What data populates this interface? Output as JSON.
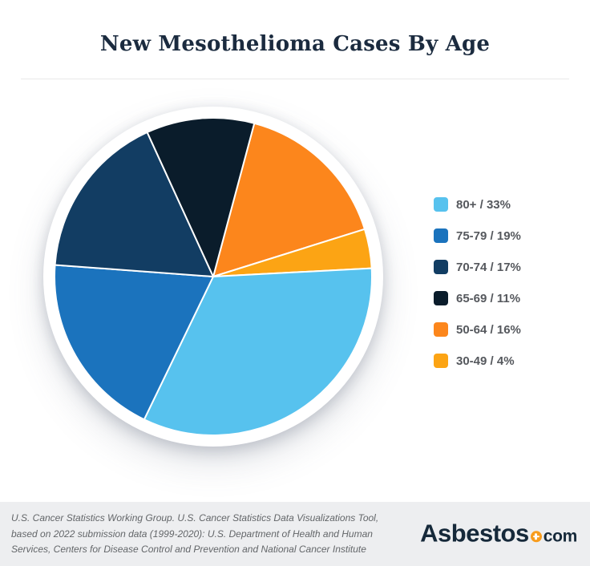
{
  "page": {
    "title": "New Mesothelioma Cases By Age",
    "background_color": "#ffffff",
    "divider_color": "#e8e8e8",
    "title_color": "#1b2b3f"
  },
  "chart_data": {
    "type": "pie",
    "title": "New Mesothelioma Cases By Age",
    "slices": [
      {
        "label": "80+",
        "percent": 33,
        "color": "#57C2EE"
      },
      {
        "label": "75-79",
        "percent": 19,
        "color": "#1B73BD"
      },
      {
        "label": "70-74",
        "percent": 17,
        "color": "#123D63"
      },
      {
        "label": "65-69",
        "percent": 11,
        "color": "#0A1C2B"
      },
      {
        "label": "50-64",
        "percent": 16,
        "color": "#FC861C"
      },
      {
        "label": "30-49",
        "percent": 4,
        "color": "#FCA414"
      }
    ],
    "draw_order_clockwise_from_top": [
      "50-64",
      "30-49",
      "80+",
      "75-79",
      "70-74",
      "65-69"
    ],
    "start_angle_deg": 15,
    "slice_border_color": "#ffffff",
    "slice_border_width": 2,
    "legend_position": "right",
    "legend_separator": " / ",
    "legend_value_suffix": "%"
  },
  "footer": {
    "background_color": "#edeef0",
    "source_lines": [
      "U.S. Cancer Statistics Working Group. U.S. Cancer Statistics Data Visualizations Tool,",
      "based on 2022 submission data (1999-2020): U.S. Department of Health and Human",
      "Services, Centers for Disease Control and Prevention and National Cancer Institute"
    ],
    "logo": {
      "text_main": "Asbestos",
      "text_suffix": "com",
      "badge_color": "#F89C1C",
      "badge_plus_color": "#ffffff",
      "text_color": "#16293a"
    }
  }
}
